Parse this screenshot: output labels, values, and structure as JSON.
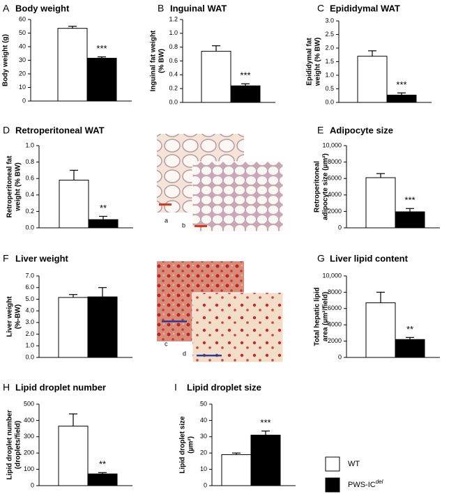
{
  "legend": [
    {
      "name": "WT",
      "color": "#ffffff"
    },
    {
      "name": "PWS-IC",
      "name_sup": "del",
      "color": "#000000"
    }
  ],
  "images": [
    {
      "labels": [
        "a",
        "b"
      ]
    },
    {
      "labels": [
        "c",
        "d"
      ]
    }
  ],
  "chart_data": [
    {
      "type": "bar",
      "panel": "A",
      "title": "Body weight",
      "ylabel": [
        "Body weight (g)"
      ],
      "values": [
        53.5,
        31.5
      ],
      "errors": [
        1.5,
        1
      ],
      "significance": "***",
      "ylim": [
        0,
        60
      ],
      "yticks": [
        0,
        10,
        20,
        30,
        40,
        50,
        60
      ]
    },
    {
      "type": "bar",
      "panel": "B",
      "title": "Inguinal WAT",
      "ylabel": [
        "Inguinal fat weight",
        "(% BW)"
      ],
      "values": [
        0.74,
        0.24
      ],
      "errors": [
        0.08,
        0.03
      ],
      "significance": "***",
      "ylim": [
        0,
        1.2
      ],
      "yticks": [
        {
          "value": 0,
          "label": "0.0"
        },
        0.2,
        0.4,
        0.6,
        0.8,
        {
          "value": 1,
          "label": "1.0"
        },
        1.2
      ]
    },
    {
      "type": "bar",
      "panel": "C",
      "title": "Epididymal WAT",
      "ylabel": [
        "Epididymal fat",
        "weight (% BW)"
      ],
      "values": [
        1.7,
        0.27
      ],
      "errors": [
        0.2,
        0.08
      ],
      "significance": "***",
      "ylim": [
        0,
        3
      ],
      "yticks": [
        {
          "value": 0,
          "label": "0.0"
        },
        0.5,
        {
          "value": 1,
          "label": "1.0"
        },
        1.5,
        {
          "value": 2,
          "label": "2.0"
        },
        2.5,
        {
          "value": 3,
          "label": "3.0"
        }
      ]
    },
    {
      "type": "bar",
      "panel": "D",
      "title": "Retroperitoneal WAT",
      "ylabel": [
        "Retroperitoneal fat",
        "weight (% BW)"
      ],
      "values": [
        0.58,
        0.1
      ],
      "errors": [
        0.12,
        0.04
      ],
      "significance": "**",
      "ylim": [
        0,
        1
      ],
      "yticks": [
        {
          "value": 0,
          "label": "0.0"
        },
        0.2,
        0.4,
        0.6,
        0.8,
        {
          "value": 1,
          "label": "1.0"
        }
      ]
    },
    {
      "type": "bar",
      "panel": "E",
      "title": "Adipocyte size",
      "ylabel": [
        "Retroperitoneal",
        "adipocyte size (µm²)"
      ],
      "values": [
        6100,
        1950
      ],
      "errors": [
        500,
        400
      ],
      "significance": "***",
      "ylim": [
        0,
        10000
      ],
      "yticks": [
        0,
        2000,
        4000,
        6000,
        8000,
        {
          "value": 10000,
          "label": "10,000"
        }
      ]
    },
    {
      "type": "bar",
      "panel": "F",
      "title": "Liver weight",
      "ylabel": [
        "Liver weight",
        "(%-BW)"
      ],
      "values": [
        5.15,
        5.2
      ],
      "errors": [
        0.25,
        0.8
      ],
      "ylim": [
        0,
        7
      ],
      "yticks": [
        {
          "value": 0,
          "label": "0.0"
        },
        {
          "value": 1,
          "label": "1.0"
        },
        {
          "value": 2,
          "label": "2.0"
        },
        {
          "value": 3,
          "label": "3.0"
        },
        {
          "value": 4,
          "label": "4.0"
        },
        {
          "value": 5,
          "label": "5.0"
        },
        {
          "value": 6,
          "label": "6.0"
        },
        {
          "value": 7,
          "label": "7.0"
        }
      ]
    },
    {
      "type": "bar",
      "panel": "G",
      "title": "Liver lipid content",
      "ylabel": [
        "Total hepatic lipid",
        "area (µm²/field)"
      ],
      "values": [
        6700,
        2200
      ],
      "errors": [
        1300,
        250
      ],
      "significance": "**",
      "ylim": [
        0,
        10000
      ],
      "yticks": [
        0,
        2000,
        4000,
        6000,
        8000,
        {
          "value": 10000,
          "label": "10,000"
        }
      ]
    },
    {
      "type": "bar",
      "panel": "H",
      "title": "Lipid droplet number",
      "ylabel": [
        "Lipid droplet number",
        "(droplets/field)"
      ],
      "values": [
        365,
        72
      ],
      "errors": [
        75,
        8
      ],
      "significance": "**",
      "ylim": [
        0,
        500
      ],
      "yticks": [
        0,
        100,
        200,
        300,
        400,
        500
      ]
    },
    {
      "type": "bar",
      "panel": "I",
      "title": "Lipid droplet size",
      "ylabel": [
        "Lipid droplet size",
        "(µm²)"
      ],
      "values": [
        19,
        31
      ],
      "errors": [
        1,
        2.5
      ],
      "significance": "***",
      "ylim": [
        0,
        50
      ],
      "yticks": [
        0,
        10,
        20,
        30,
        40,
        50
      ]
    }
  ]
}
